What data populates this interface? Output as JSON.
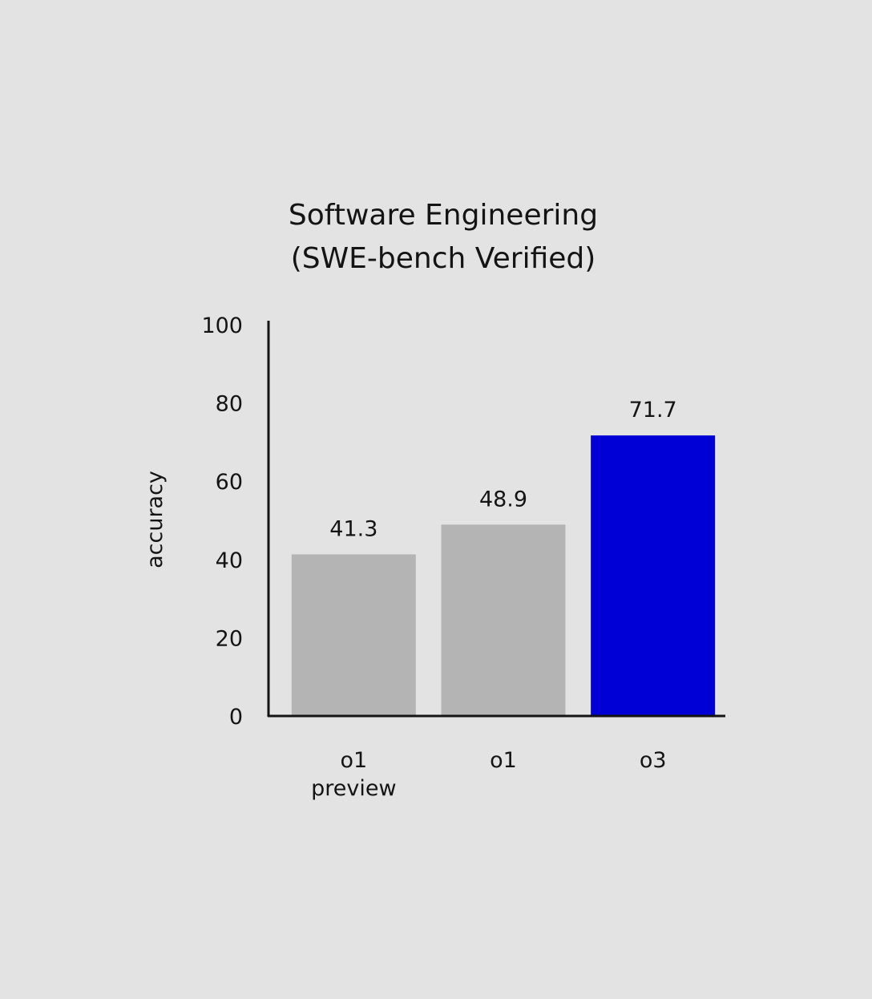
{
  "chart_data": {
    "type": "bar",
    "title_lines": [
      "Software Engineering",
      "(SWE-bench Verified)"
    ],
    "xlabel": "",
    "ylabel": "accuracy",
    "ylim": [
      0,
      100
    ],
    "yticks": [
      "0",
      "20",
      "40",
      "60",
      "80",
      "100"
    ],
    "categories": [
      {
        "lines": [
          "o1",
          "preview"
        ]
      },
      {
        "lines": [
          "o1"
        ]
      },
      {
        "lines": [
          "o3"
        ]
      }
    ],
    "values": [
      41.3,
      48.9,
      71.7
    ],
    "value_labels": [
      "41.3",
      "48.9",
      "71.7"
    ],
    "colors": [
      "#b4b4b4",
      "#b4b4b4",
      "#0000d6"
    ],
    "grid": false,
    "legend": "none"
  }
}
